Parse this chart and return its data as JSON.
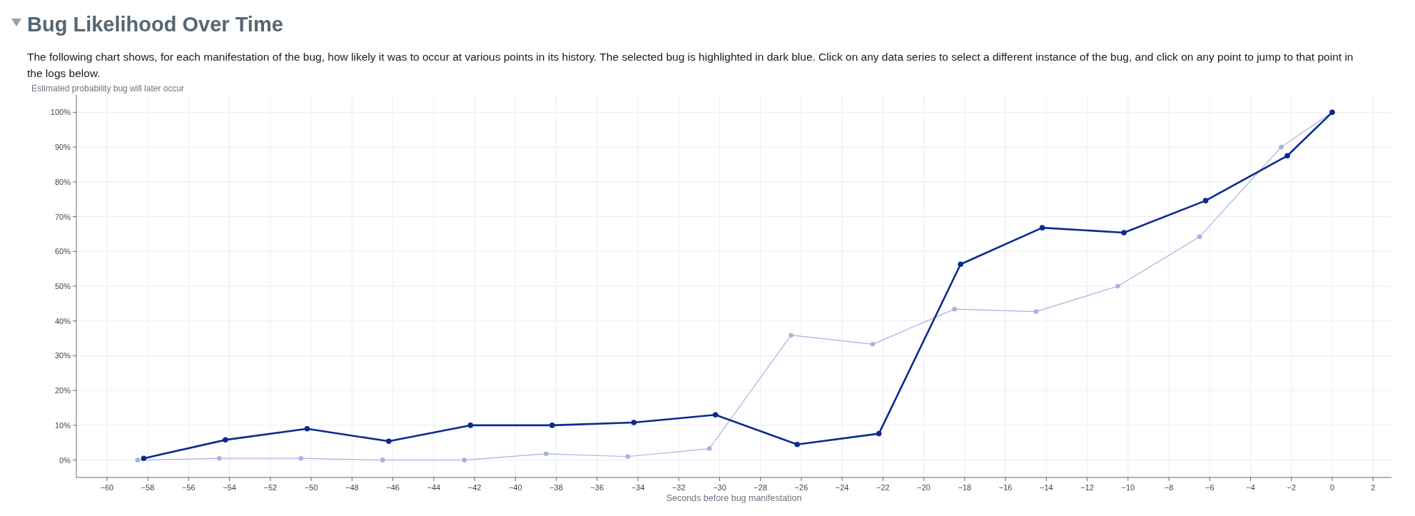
{
  "chart_data": {
    "type": "line",
    "title": "Bug Likelihood Over Time",
    "subtitle": "The following chart shows, for each manifestation of the bug, how likely it was to occur at various points in its history. The selected bug is highlighted in dark blue. Click on any data series to select a different instance of the bug, and click on any point to jump to that point in the logs below.",
    "ylabel": "Estimated probability bug will later occur",
    "xlabel": "Seconds before bug manifestation",
    "xlim": [
      -61.5,
      2.9
    ],
    "ylim": [
      -5,
      105
    ],
    "xticks": [
      -60,
      -58,
      -56,
      -54,
      -52,
      -50,
      -48,
      -46,
      -44,
      -42,
      -40,
      -38,
      -36,
      -34,
      -32,
      -30,
      -28,
      -26,
      -24,
      -22,
      -20,
      -18,
      -16,
      -14,
      -12,
      -10,
      -8,
      -6,
      -4,
      -2,
      0,
      2
    ],
    "yticks": [
      {
        "value": 0,
        "label": "0%"
      },
      {
        "value": 10,
        "label": "10%"
      },
      {
        "value": 20,
        "label": "20%"
      },
      {
        "value": 30,
        "label": "30%"
      },
      {
        "value": 40,
        "label": "40%"
      },
      {
        "value": 50,
        "label": "50%"
      },
      {
        "value": 60,
        "label": "60%"
      },
      {
        "value": 70,
        "label": "70%"
      },
      {
        "value": 80,
        "label": "80%"
      },
      {
        "value": 90,
        "label": "90%"
      },
      {
        "value": 100,
        "label": "100%"
      }
    ],
    "grid": true,
    "marker": "circle",
    "series": [
      {
        "color": "#a9b1e0",
        "x": [
          -58.5,
          -54.5,
          -50.5,
          -46.5,
          -42.5,
          -38.5,
          -34.5,
          -30.5,
          -26.5,
          -22.5,
          -18.5,
          -14.5,
          -10.5,
          -6.5,
          -2.5,
          0
        ],
        "values": [
          0,
          0.5,
          0.5,
          0,
          0,
          1.8,
          1,
          3.3,
          35.9,
          33.3,
          43.4,
          42.7,
          50,
          64.2,
          90,
          100
        ]
      },
      {
        "color": "#0a2a8f",
        "x": [
          -58.2,
          -54.2,
          -50.2,
          -46.2,
          -42.2,
          -38.2,
          -34.2,
          -30.2,
          -26.2,
          -22.2,
          -18.2,
          -14.2,
          -10.2,
          -6.2,
          -2.2,
          0
        ],
        "values": [
          0.5,
          5.8,
          9,
          5.4,
          10,
          10,
          10.8,
          13,
          4.5,
          7.6,
          56.3,
          66.8,
          65.4,
          74.6,
          87.5,
          100
        ]
      }
    ]
  }
}
